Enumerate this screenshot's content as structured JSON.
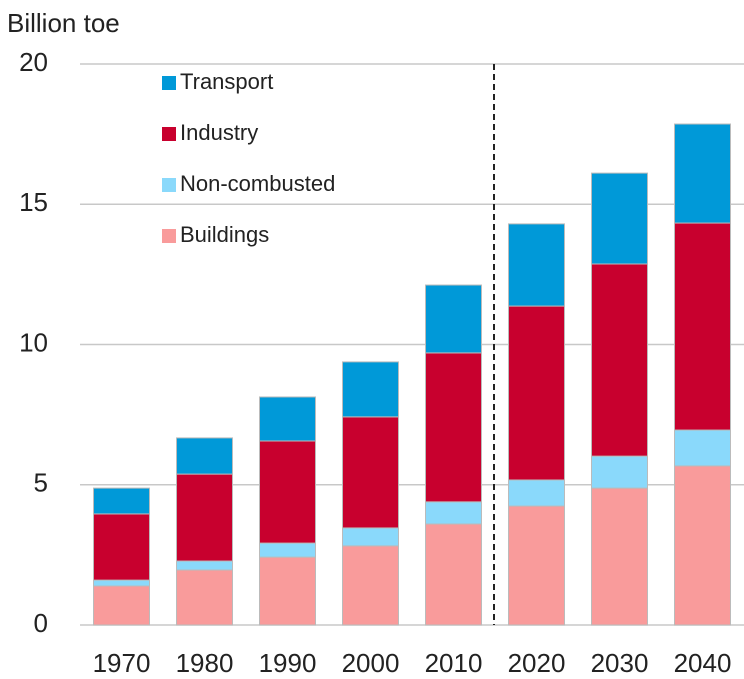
{
  "chart_data": {
    "type": "stacked_bar",
    "y_label": "Billion toe",
    "categories": [
      "1970",
      "1980",
      "1990",
      "2000",
      "2010",
      "2020",
      "2030",
      "2040"
    ],
    "series": [
      {
        "name": "Buildings",
        "color": "#f99b9b",
        "values": [
          1.39,
          1.96,
          2.42,
          2.82,
          3.6,
          4.24,
          4.88,
          5.67
        ]
      },
      {
        "name": "Non-combusted",
        "color": "#8ad9fb",
        "values": [
          0.21,
          0.32,
          0.5,
          0.64,
          0.79,
          0.93,
          1.14,
          1.28
        ]
      },
      {
        "name": "Industry",
        "color": "#c8002e",
        "values": [
          2.36,
          3.1,
          3.64,
          3.96,
          5.31,
          6.2,
          6.85,
          7.38
        ]
      },
      {
        "name": "Transport",
        "color": "#0099d8",
        "values": [
          0.92,
          1.29,
          1.57,
          1.96,
          2.42,
          2.93,
          3.24,
          3.53
        ]
      }
    ],
    "ylim": [
      0,
      20
    ],
    "yticks": [
      0,
      5,
      10,
      15,
      20
    ],
    "grid": true
  }
}
